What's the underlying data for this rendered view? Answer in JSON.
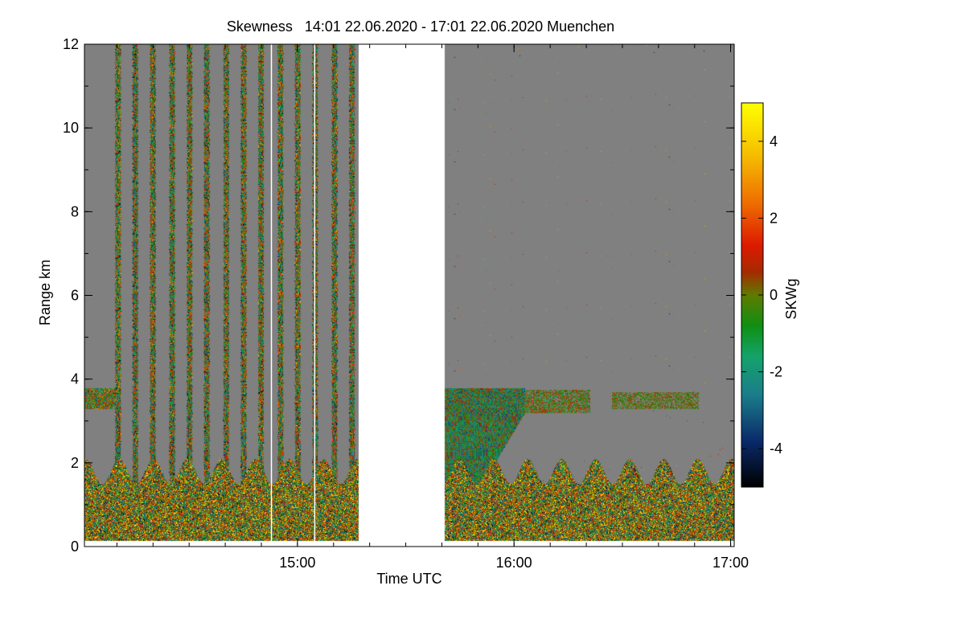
{
  "chart_data": {
    "type": "heatmap",
    "title": "Skewness   14:01 22.06.2020 - 17:01 22.06.2020 Muenchen",
    "xlabel": "Time UTC",
    "ylabel": "Range km",
    "x_range_hours": [
      14.0167,
      17.0167
    ],
    "y_range_km": [
      0,
      12
    ],
    "x_major_ticks": [
      {
        "value": 15.0,
        "label": "15:00"
      },
      {
        "value": 16.0,
        "label": "16:00"
      },
      {
        "value": 17.0,
        "label": "17:00"
      }
    ],
    "x_minor_tick_step_hours": 0.1667,
    "y_ticks": [
      {
        "value": 0,
        "label": "0"
      },
      {
        "value": 2,
        "label": "2"
      },
      {
        "value": 4,
        "label": "4"
      },
      {
        "value": 6,
        "label": "6"
      },
      {
        "value": 8,
        "label": "8"
      },
      {
        "value": 10,
        "label": "10"
      },
      {
        "value": 12,
        "label": "12"
      }
    ],
    "colorbar": {
      "label": "SKWg",
      "range": [
        -5,
        5
      ],
      "ticks": [
        {
          "value": 4,
          "label": "4"
        },
        {
          "value": 2,
          "label": "2"
        },
        {
          "value": 0,
          "label": "0"
        },
        {
          "value": -2,
          "label": "-2"
        },
        {
          "value": -4,
          "label": "-4"
        }
      ],
      "colors": [
        {
          "value": -5,
          "color": "#000000"
        },
        {
          "value": -3.8,
          "color": "#0a2a6a"
        },
        {
          "value": -2.6,
          "color": "#1a7d8a"
        },
        {
          "value": -1.6,
          "color": "#14a36a"
        },
        {
          "value": -0.8,
          "color": "#0f8f12"
        },
        {
          "value": 0,
          "color": "#5f7a00"
        },
        {
          "value": 0.6,
          "color": "#a52a00"
        },
        {
          "value": 1.3,
          "color": "#dd1a00"
        },
        {
          "value": 2.4,
          "color": "#ee6e00"
        },
        {
          "value": 3.6,
          "color": "#f5bb00"
        },
        {
          "value": 5,
          "color": "#ffff00"
        }
      ]
    },
    "no_data_gap_hours": [
      15.28,
      15.68
    ],
    "background_value_color": "#808080",
    "features": {
      "boundary_layer_top_km": 2.0,
      "cloud_layer_km": [
        3.3,
        3.8
      ],
      "vertical_scan_columns_hours": [
        14.17,
        14.25,
        14.33,
        14.42,
        14.5,
        14.58,
        14.67,
        14.75,
        14.83,
        14.92,
        15.0,
        15.08,
        15.17,
        15.25
      ],
      "white_lines_hours": [
        14.88,
        15.08
      ]
    }
  }
}
